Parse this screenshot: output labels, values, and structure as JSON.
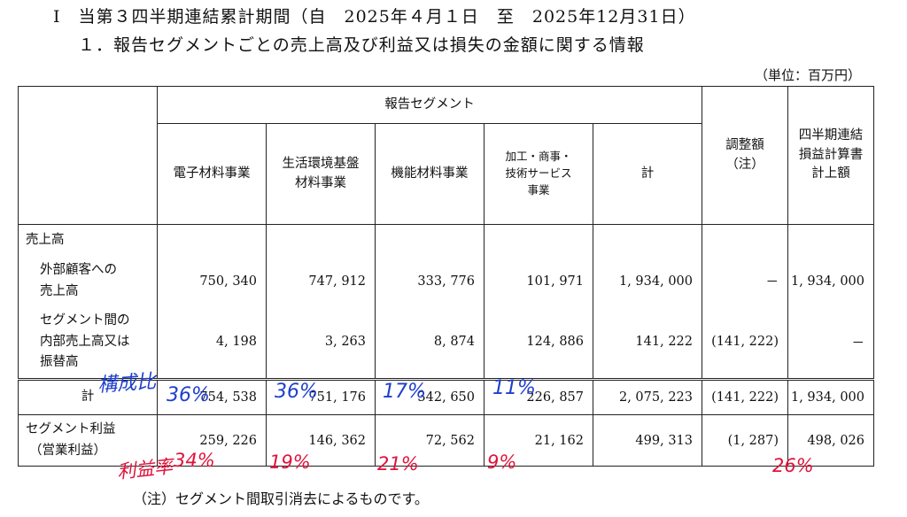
{
  "title": {
    "line1": "Ⅰ　当第３四半期連結累計期間（自　2025年４月１日　至　2025年12月31日）",
    "line2": "１．報告セグメントごとの売上高及び利益又は損失の金額に関する情報",
    "unit": "（単位：百万円）"
  },
  "table": {
    "group_header": "報告セグメント",
    "columns": {
      "c1": "電子材料事業",
      "c2a": "生活環境基盤",
      "c2b": "材料事業",
      "c3": "機能材料事業",
      "c4a": "加工・商事・",
      "c4b": "技術サービス",
      "c4c": "事業",
      "c5": "計",
      "c6a": "調整額",
      "c6b": "（注）",
      "c7a": "四半期連結",
      "c7b": "損益計算書",
      "c7c": "計上額"
    },
    "rows": {
      "sales_label": "売上高",
      "external_label_1": "外部顧客への",
      "external_label_2": "売上高",
      "external": [
        "750, 340",
        "747, 912",
        "333, 776",
        "101, 971",
        "1, 934, 000",
        "－",
        "1, 934, 000"
      ],
      "inter_label_1": "セグメント間の",
      "inter_label_2": "内部売上高又は",
      "inter_label_3": "振替高",
      "inter": [
        "4, 198",
        "3, 263",
        "8, 874",
        "124, 886",
        "141, 222",
        "(141, 222)",
        "－"
      ],
      "total_label": "計",
      "total": [
        "754, 538",
        "751, 176",
        "342, 650",
        "226, 857",
        "2, 075, 223",
        "(141, 222)",
        "1, 934, 000"
      ],
      "profit_label_1": "セグメント利益",
      "profit_label_2": "（営業利益）",
      "profit": [
        "259, 226",
        "146, 362",
        "72, 562",
        "21, 162",
        "499, 313",
        "(1, 287)",
        "498, 026"
      ]
    }
  },
  "note": "（注）セグメント間取引消去によるものです。",
  "handwriting": {
    "composition_label": "構成比",
    "composition": [
      "36%",
      "36%",
      "17%",
      "11%"
    ],
    "margin_label": "利益率",
    "margins": [
      "34%",
      "19%",
      "21%",
      "9%",
      "26%"
    ],
    "colors": {
      "blue": "#1f3fcc",
      "red": "#e0123b"
    }
  }
}
